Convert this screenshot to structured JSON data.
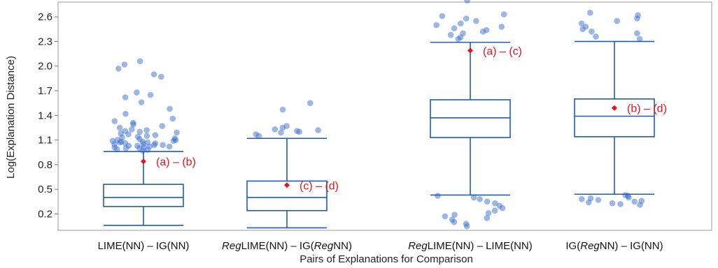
{
  "chart_data": {
    "type": "box",
    "ylabel": "Log(Explanation Distance)",
    "xlabel": "Pairs of Explanations for Comparison",
    "yticks": [
      "0.2",
      "0.5",
      "0.8",
      "1.1",
      "1.4",
      "1.7",
      "2.0",
      "2.3",
      "2.6"
    ],
    "ylim": [
      0.0,
      2.78
    ],
    "colors": {
      "box": "#1f5bb5",
      "points": "#3a6fc9",
      "mean": "#e8141c"
    },
    "groups": [
      {
        "label_parts": [
          {
            "t": "LIME(NN) – IG(NN)",
            "i": false
          }
        ],
        "whisker_low": 0.06,
        "q1": 0.29,
        "median": 0.4,
        "q3": 0.56,
        "whisker_high": 0.96,
        "mean": 0.84,
        "annotation": "(a) – (b)",
        "outliers": [
          0.97,
          0.98,
          0.99,
          1.0,
          1.0,
          1.01,
          1.01,
          1.02,
          1.02,
          1.03,
          1.03,
          1.04,
          1.04,
          1.05,
          1.05,
          1.06,
          1.06,
          1.07,
          1.07,
          1.08,
          1.08,
          1.09,
          1.09,
          1.1,
          1.1,
          1.11,
          1.12,
          1.13,
          1.14,
          1.15,
          1.16,
          1.17,
          1.18,
          1.19,
          1.2,
          1.21,
          1.22,
          1.23,
          1.25,
          1.27,
          1.29,
          1.31,
          1.33,
          1.36,
          1.42,
          1.48,
          1.56,
          1.62,
          1.65,
          1.68,
          1.87,
          1.9,
          1.97,
          2.02,
          2.06
        ]
      },
      {
        "label_parts": [
          {
            "t": "Reg",
            "i": true
          },
          {
            "t": "LIME(NN) – IG(",
            "i": false
          },
          {
            "t": "Reg",
            "i": true
          },
          {
            "t": "NN)",
            "i": false
          }
        ],
        "whisker_low": 0.03,
        "q1": 0.24,
        "median": 0.4,
        "q3": 0.6,
        "whisker_high": 1.12,
        "mean": 0.55,
        "annotation": "(c) – (d)",
        "outliers": [
          1.15,
          1.17,
          1.19,
          1.2,
          1.21,
          1.22,
          1.23,
          1.25,
          1.27,
          1.47,
          1.55
        ]
      },
      {
        "label_parts": [
          {
            "t": "Reg",
            "i": true
          },
          {
            "t": "LIME(NN) – LIME(NN)",
            "i": false
          }
        ],
        "whisker_low": 0.43,
        "q1": 1.13,
        "median": 1.37,
        "q3": 1.59,
        "whisker_high": 2.29,
        "mean": 2.19,
        "annotation": "(a) – (c)",
        "outliers": [
          0.05,
          0.08,
          0.1,
          0.13,
          0.15,
          0.17,
          0.19,
          0.21,
          0.24,
          0.27,
          0.3,
          0.33,
          0.35,
          0.38,
          0.4,
          0.42,
          2.33,
          2.35,
          2.38,
          2.4,
          2.42,
          2.44,
          2.46,
          2.48,
          2.5,
          2.52,
          2.55,
          2.58,
          2.61,
          2.63,
          2.8
        ]
      },
      {
        "label_parts": [
          {
            "t": "IG(",
            "i": false
          },
          {
            "t": "Reg",
            "i": true
          },
          {
            "t": "NN) – IG(NN)",
            "i": false
          }
        ],
        "whisker_low": 0.44,
        "q1": 1.14,
        "median": 1.39,
        "q3": 1.6,
        "whisker_high": 2.3,
        "mean": 1.49,
        "annotation": "(b) – (d)",
        "outliers": [
          0.31,
          0.32,
          0.33,
          0.34,
          0.35,
          0.36,
          0.37,
          0.38,
          0.39,
          0.4,
          0.42,
          0.43,
          2.33,
          2.36,
          2.4,
          2.42,
          2.45,
          2.48,
          2.52,
          2.55,
          2.58,
          2.62,
          2.65
        ]
      }
    ]
  }
}
